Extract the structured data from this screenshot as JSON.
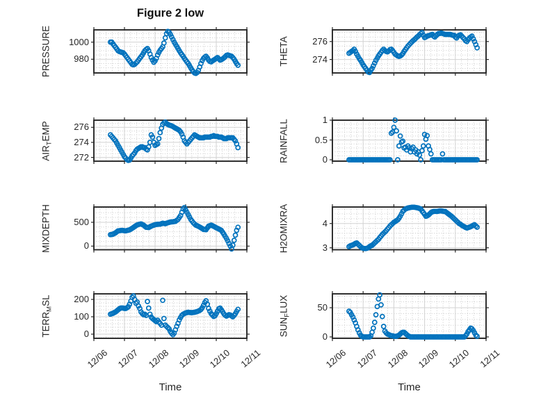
{
  "title": "Figure 2 low",
  "xlabel": "Time",
  "colors": {
    "marker": "#0072BD",
    "axis": "#262626",
    "text": "#262626",
    "title_text": "#111111",
    "grid_major": "#d2d2d2",
    "grid_minor": "#c4c4c4",
    "background": "#ffffff"
  },
  "chart_data": {
    "type": "scatter",
    "title": "Figure 2 low",
    "xlabel": "Time",
    "legend": "none",
    "grid": "major+minor-dotted",
    "x_tick_labels": [
      "12/06",
      "12/07",
      "12/08",
      "12/09",
      "12/10",
      "12/11"
    ],
    "x_tick_hours": [
      0,
      24,
      48,
      72,
      96,
      120
    ],
    "x_range_hours": [
      0,
      120
    ],
    "x_minor_step_hours": 4.8,
    "x_hours": [
      13,
      14,
      15,
      16,
      17,
      18,
      19,
      20,
      21,
      22,
      23,
      24,
      25,
      26,
      27,
      28,
      29,
      30,
      31,
      32,
      33,
      34,
      35,
      36,
      37,
      38,
      39,
      40,
      41,
      42,
      43,
      44,
      45,
      46,
      47,
      48,
      49,
      50,
      51,
      52,
      53,
      54,
      55,
      56,
      57,
      58,
      59,
      60,
      61,
      62,
      63,
      64,
      65,
      66,
      67,
      68,
      69,
      70,
      71,
      72,
      73,
      74,
      75,
      76,
      77,
      78,
      79,
      80,
      81,
      82,
      83,
      84,
      85,
      86,
      87,
      88,
      89,
      90,
      91,
      92,
      93,
      94,
      95,
      96,
      97,
      98,
      99,
      100,
      101,
      102,
      103,
      104,
      105,
      106,
      107,
      108,
      109,
      110,
      111,
      112,
      113
    ],
    "subplots": [
      {
        "name": "PRESSURE",
        "col": 0,
        "row": 0,
        "ylabel_parts": [
          {
            "t": "PRESSURE"
          }
        ],
        "ylim": [
          964,
          1014.3
        ],
        "yticks": [
          980,
          1000
        ],
        "ytick_labels": [
          "980",
          "1000"
        ],
        "y_minor_step": 5,
        "values": [
          1000,
          1000,
          998,
          996,
          994,
          992,
          990,
          989,
          988.5,
          988,
          987.5,
          986,
          984,
          982,
          980,
          978,
          976,
          974,
          973.5,
          974,
          975.5,
          977,
          979,
          981,
          983,
          985,
          987.5,
          990,
          991.5,
          992.5,
          990,
          986,
          982,
          979,
          976.5,
          978,
          981,
          985,
          988,
          990.5,
          992.5,
          994.5,
          999,
          1005,
          1010,
          1012.5,
          1011.5,
          1009,
          1006,
          1003,
          1000,
          997.5,
          995,
          992.5,
          990,
          987.5,
          985.5,
          983.5,
          981,
          979,
          977,
          975,
          972.5,
          970,
          967.5,
          965.5,
          964,
          963.5,
          964.5,
          967,
          971,
          975,
          978.5,
          981,
          982.5,
          983.5,
          981.5,
          979,
          977.5,
          977,
          978,
          979,
          980,
          981,
          982,
          980.5,
          979,
          979.5,
          980.5,
          981.5,
          983,
          984.5,
          985,
          984.5,
          984,
          983.5,
          982,
          980,
          977.5,
          975,
          973
        ]
      },
      {
        "name": "THETA",
        "col": 1,
        "row": 0,
        "ylabel_parts": [
          {
            "t": "THETA"
          }
        ],
        "ylim": [
          272.5,
          277.3
        ],
        "yticks": [
          274,
          276
        ],
        "ytick_labels": [
          "274",
          "276"
        ],
        "y_minor_step": 0.5,
        "values": [
          274.7,
          274.8,
          274.9,
          275,
          275.15,
          274.9,
          274.6,
          274.35,
          274.1,
          273.9,
          273.65,
          273.4,
          273.2,
          273,
          272.8,
          272.6,
          272.55,
          272.8,
          273,
          273.3,
          273.6,
          273.9,
          274.15,
          274.4,
          274.6,
          274.8,
          275,
          275.15,
          275,
          274.9,
          274.85,
          274.95,
          275.1,
          275.15,
          275,
          274.8,
          274.6,
          274.5,
          274.4,
          274.35,
          274.4,
          274.5,
          274.65,
          274.9,
          275.1,
          275.3,
          275.5,
          275.65,
          275.8,
          275.95,
          276.1,
          276.2,
          276.35,
          276.5,
          276.6,
          276.75,
          276.9,
          277,
          276.7,
          276.45,
          276.5,
          276.6,
          276.65,
          276.7,
          276.75,
          276.8,
          276.6,
          276.5,
          276.65,
          276.8,
          276.9,
          276.9,
          276.95,
          276.9,
          276.85,
          276.8,
          276.8,
          276.8,
          276.8,
          276.8,
          276.75,
          276.7,
          276.7,
          276.5,
          276.4,
          276.6,
          276.7,
          276.75,
          276.6,
          276.45,
          276.3,
          276.1,
          276,
          276.2,
          276.4,
          276.5,
          276.6,
          276.3,
          276,
          275.65,
          275.3
        ]
      },
      {
        "name": "AIR_TEMP",
        "col": 0,
        "row": 1,
        "ylabel_parts": [
          {
            "t": "AIR"
          },
          {
            "t": "T",
            "sub": true
          },
          {
            "t": "EMP"
          }
        ],
        "ylim": [
          271.5,
          276.95
        ],
        "yticks": [
          272,
          274,
          276
        ],
        "ytick_labels": [
          "272",
          "274",
          "276"
        ],
        "y_minor_step": 0.5,
        "values": [
          275,
          274.8,
          274.6,
          274.4,
          274.2,
          273.9,
          273.6,
          273.3,
          273,
          272.7,
          272.4,
          272.1,
          271.9,
          271.7,
          271.6,
          271.65,
          271.9,
          272.2,
          272.4,
          272.6,
          272.9,
          273.1,
          273.2,
          273.3,
          273.4,
          273.4,
          273.3,
          273.3,
          273.1,
          273,
          273.4,
          274,
          275,
          274.7,
          274,
          273.6,
          273.7,
          273.8,
          274.5,
          275.3,
          275.9,
          276.4,
          276.6,
          276.7,
          276.5,
          276.4,
          276.3,
          276.25,
          276.2,
          276.1,
          276,
          275.9,
          275.8,
          275.7,
          275.6,
          275.4,
          275.1,
          274.7,
          274.2,
          274,
          273.8,
          274,
          274.2,
          274.4,
          274.6,
          274.8,
          275,
          274.9,
          274.8,
          274.7,
          274.6,
          274.6,
          274.6,
          274.6,
          274.7,
          274.7,
          274.7,
          274.7,
          274.7,
          274.8,
          274.8,
          274.9,
          274.8,
          274.8,
          274.8,
          274.7,
          274.7,
          274.7,
          274.6,
          274.5,
          274.5,
          274.5,
          274.6,
          274.6,
          274.6,
          274.6,
          274.6,
          274.4,
          274.2,
          273.8,
          273.3
        ]
      },
      {
        "name": "RAINFALL",
        "col": 1,
        "row": 1,
        "ylabel_parts": [
          {
            "t": "RAINFALL"
          }
        ],
        "ylim": [
          -0.035,
          1.0
        ],
        "yticks": [
          0,
          0.5,
          1
        ],
        "ytick_labels": [
          "0",
          "0.5",
          "1"
        ],
        "y_minor_step": 0.1,
        "values": [
          0,
          0,
          0,
          0,
          0,
          0,
          0,
          0,
          0,
          0,
          0,
          0,
          0,
          0,
          0,
          0,
          0,
          0,
          0,
          0,
          0,
          0,
          0,
          0,
          0,
          0,
          0,
          0,
          0,
          0,
          0,
          0,
          0,
          0.67,
          0.7,
          0.82,
          1,
          0.73,
          0,
          0.35,
          0.6,
          0.45,
          0.47,
          0.3,
          0.32,
          0.25,
          0.35,
          0.3,
          0.2,
          0.28,
          0.32,
          0.2,
          0.25,
          0.15,
          0.2,
          0.12,
          0,
          0.23,
          0.35,
          0.64,
          0.52,
          0.61,
          0.35,
          0.26,
          0.15,
          0,
          0,
          0,
          0,
          0,
          0,
          0,
          0,
          0.15,
          0,
          0,
          0,
          0,
          0,
          0,
          0,
          0,
          0,
          0,
          0,
          0,
          0,
          0,
          0,
          0,
          0,
          0,
          0,
          0,
          0,
          0,
          0,
          0,
          0,
          0,
          0
        ]
      },
      {
        "name": "MIXDEPTH",
        "col": 0,
        "row": 2,
        "ylabel_parts": [
          {
            "t": "MIXDEPTH"
          }
        ],
        "ylim": [
          -76,
          820
        ],
        "yticks": [
          0,
          500
        ],
        "ytick_labels": [
          "0",
          "500"
        ],
        "y_minor_step": 100,
        "values": [
          240,
          245,
          250,
          265,
          280,
          300,
          320,
          323,
          327,
          330,
          327,
          323,
          320,
          327,
          333,
          340,
          357,
          373,
          390,
          410,
          430,
          443,
          455,
          460,
          465,
          453,
          440,
          418,
          395,
          393,
          390,
          405,
          420,
          430,
          440,
          448,
          455,
          457,
          458,
          460,
          470,
          480,
          475,
          470,
          480,
          490,
          498,
          505,
          508,
          510,
          515,
          520,
          540,
          560,
          600,
          640,
          710,
          780,
          808,
          760,
          710,
          660,
          610,
          560,
          525,
          490,
          465,
          440,
          428,
          415,
          400,
          385,
          368,
          350,
          348,
          345,
          383,
          420,
          430,
          440,
          428,
          415,
          400,
          385,
          373,
          360,
          345,
          330,
          290,
          250,
          205,
          160,
          110,
          55,
          0,
          -60,
          20,
          120,
          230,
          330,
          395
        ]
      },
      {
        "name": "H2OMIXRA",
        "col": 1,
        "row": 2,
        "ylabel_parts": [
          {
            "t": "H2OMIXRA"
          }
        ],
        "ylim": [
          2.92,
          4.68
        ],
        "yticks": [
          3,
          4
        ],
        "ytick_labels": [
          "3",
          "4"
        ],
        "y_minor_step": 0.2,
        "values": [
          3.05,
          3.08,
          3.1,
          3.12,
          3.15,
          3.18,
          3.2,
          3.15,
          3.1,
          3.05,
          3,
          2.98,
          2.97,
          2.97,
          2.98,
          3,
          3.05,
          3.08,
          3.1,
          3.15,
          3.2,
          3.25,
          3.3,
          3.35,
          3.42,
          3.48,
          3.55,
          3.6,
          3.65,
          3.7,
          3.77,
          3.83,
          3.9,
          3.95,
          4,
          4.05,
          4.08,
          4.12,
          4.15,
          4.22,
          4.3,
          4.4,
          4.5,
          4.55,
          4.6,
          4.62,
          4.64,
          4.65,
          4.66,
          4.67,
          4.67,
          4.67,
          4.66,
          4.65,
          4.64,
          4.62,
          4.6,
          4.52,
          4.45,
          4.38,
          4.3,
          4.32,
          4.35,
          4.4,
          4.45,
          4.48,
          4.5,
          4.5,
          4.5,
          4.5,
          4.51,
          4.52,
          4.52,
          4.51,
          4.5,
          4.5,
          4.46,
          4.42,
          4.38,
          4.34,
          4.3,
          4.25,
          4.2,
          4.15,
          4.1,
          4.05,
          4,
          3.97,
          3.93,
          3.9,
          3.87,
          3.84,
          3.82,
          3.83,
          3.85,
          3.87,
          3.9,
          3.93,
          3.95,
          3.9,
          3.85
        ]
      },
      {
        "name": "TERR_MSL",
        "col": 0,
        "row": 3,
        "ylabel_parts": [
          {
            "t": "TERR"
          },
          {
            "t": "M",
            "sub": true
          },
          {
            "t": "SL"
          }
        ],
        "ylim": [
          -24,
          232
        ],
        "yticks": [
          0,
          100,
          200
        ],
        "ytick_labels": [
          "0",
          "100",
          "200"
        ],
        "y_minor_step": 20,
        "values": [
          115,
          118,
          120,
          124,
          128,
          134,
          140,
          146,
          150,
          151,
          150,
          148,
          148,
          152,
          158,
          172,
          190,
          212,
          220,
          200,
          178,
          185,
          162,
          148,
          128,
          118,
          112,
          115,
          108,
          188,
          150,
          115,
          98,
          90,
          84,
          78,
          72,
          80,
          70,
          62,
          52,
          195,
          90,
          52,
          45,
          38,
          30,
          15,
          5,
          -3,
          6,
          25,
          45,
          62,
          82,
          96,
          108,
          115,
          119,
          122,
          124,
          126,
          125,
          124,
          124,
          125,
          126,
          128,
          130,
          133,
          137,
          142,
          152,
          166,
          182,
          192,
          172,
          148,
          132,
          118,
          110,
          102,
          106,
          118,
          132,
          146,
          150,
          141,
          129,
          117,
          109,
          104,
          108,
          112,
          110,
          105,
          100,
          108,
          118,
          131,
          143
        ]
      },
      {
        "name": "SUN_FLUX",
        "col": 1,
        "row": 3,
        "ylabel_parts": [
          {
            "t": "SUN"
          },
          {
            "t": "F",
            "sub": true
          },
          {
            "t": "LUX"
          }
        ],
        "ylim": [
          -2.4,
          73.8
        ],
        "yticks": [
          0,
          50
        ],
        "ytick_labels": [
          "0",
          "50"
        ],
        "y_minor_step": 10,
        "values": [
          44,
          42,
          38,
          34,
          29,
          24,
          18,
          12,
          7,
          3,
          1,
          0,
          0,
          0,
          0,
          0,
          0,
          2,
          8,
          15,
          25,
          38,
          52,
          65,
          72,
          55,
          35,
          18,
          10,
          7,
          5,
          4,
          3,
          2,
          2,
          1,
          1,
          1,
          2,
          3,
          5,
          7,
          8,
          8,
          6,
          4,
          2,
          1,
          0,
          0,
          0,
          0,
          0,
          0,
          0,
          0,
          0,
          0,
          0,
          0,
          0,
          0,
          0,
          0,
          0,
          0,
          0,
          0,
          0,
          0,
          0,
          0,
          0,
          0,
          0,
          0,
          0,
          0,
          0,
          0,
          0,
          0,
          0,
          0,
          0,
          0,
          0,
          0,
          0,
          0,
          0,
          2,
          5,
          9,
          12,
          15,
          14,
          11,
          7,
          3,
          1
        ]
      }
    ]
  }
}
